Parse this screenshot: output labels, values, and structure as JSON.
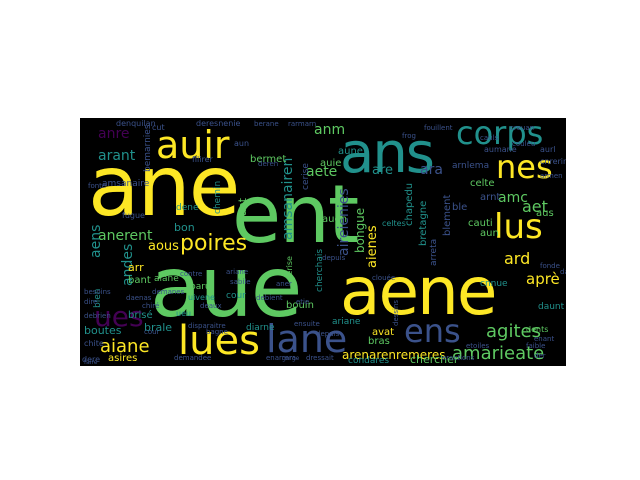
{
  "palette": [
    "#440154",
    "#3b528b",
    "#21918c",
    "#5ec962",
    "#fde725"
  ],
  "words": [
    {
      "text": "ane",
      "color": "#fde725"
    },
    {
      "text": "ent",
      "color": "#5ec962"
    },
    {
      "text": "aue",
      "color": "#5ec962"
    },
    {
      "text": "aene",
      "color": "#fde725"
    },
    {
      "text": "ans",
      "color": "#21918c"
    },
    {
      "text": "corps",
      "color": "#21918c"
    },
    {
      "text": "auir",
      "color": "#fde725"
    },
    {
      "text": "nes",
      "color": "#fde725"
    },
    {
      "text": "lus",
      "color": "#fde725"
    },
    {
      "text": "lues",
      "color": "#fde725"
    },
    {
      "text": "lane",
      "color": "#3b528b"
    },
    {
      "text": "ens",
      "color": "#3b528b"
    },
    {
      "text": "ues",
      "color": "#440154"
    },
    {
      "text": "poires",
      "color": "#fde725"
    },
    {
      "text": "aous",
      "color": "#fde725"
    },
    {
      "text": "aiane",
      "color": "#fde725"
    },
    {
      "text": "agites",
      "color": "#5ec962"
    },
    {
      "text": "amarieate",
      "color": "#5ec962"
    },
    {
      "text": "aireienies",
      "color": "#3b528b"
    },
    {
      "text": "aet",
      "color": "#5ec962"
    },
    {
      "text": "ard",
      "color": "#fde725"
    },
    {
      "text": "aprè",
      "color": "#fde725"
    },
    {
      "text": "anerent",
      "color": "#5ec962"
    },
    {
      "text": "arant",
      "color": "#21918c"
    },
    {
      "text": "anre",
      "color": "#440154"
    },
    {
      "text": "aete",
      "color": "#5ec962"
    },
    {
      "text": "ara",
      "color": "#3b528b"
    },
    {
      "text": "are",
      "color": "#21918c"
    },
    {
      "text": "anm",
      "color": "#5ec962"
    },
    {
      "text": "amc",
      "color": "#5ec962"
    },
    {
      "text": "aens",
      "color": "#21918c"
    },
    {
      "text": "andes",
      "color": "#21918c"
    },
    {
      "text": "amsanairen",
      "color": "#21918c"
    },
    {
      "text": "amsanaire",
      "color": "#3b528b"
    },
    {
      "text": "aiane",
      "color": "#5ec962"
    },
    {
      "text": "aienes",
      "color": "#fde725"
    },
    {
      "text": "arenarenremeres",
      "color": "#fde725"
    },
    {
      "text": "bongue",
      "color": "#5ec962"
    },
    {
      "text": "bon",
      "color": "#21918c"
    },
    {
      "text": "arr",
      "color": "#fde725"
    },
    {
      "text": "bant",
      "color": "#5ec962"
    },
    {
      "text": "brisé",
      "color": "#21918c"
    },
    {
      "text": "brale",
      "color": "#21918c"
    },
    {
      "text": "boutes",
      "color": "#21918c"
    },
    {
      "text": "asires",
      "color": "#fde725"
    },
    {
      "text": "bouin",
      "color": "#5ec962"
    },
    {
      "text": "avat",
      "color": "#fde725"
    },
    {
      "text": "bras",
      "color": "#5ec962"
    },
    {
      "text": "ariane",
      "color": "#21918c"
    },
    {
      "text": "chercher",
      "color": "#5ec962"
    },
    {
      "text": "condares",
      "color": "#21918c"
    },
    {
      "text": "aune",
      "color": "#21918c"
    },
    {
      "text": "auie",
      "color": "#5ec962"
    },
    {
      "text": "auen",
      "color": "#5ec962"
    },
    {
      "text": "ant",
      "color": "#5ec962"
    },
    {
      "text": "bermet",
      "color": "#5ec962"
    },
    {
      "text": "cauti",
      "color": "#5ec962"
    },
    {
      "text": "aun",
      "color": "#5ec962"
    },
    {
      "text": "celte",
      "color": "#5ec962"
    },
    {
      "text": "aus",
      "color": "#5ec962"
    },
    {
      "text": "bretagne",
      "color": "#21918c"
    },
    {
      "text": "chapedu",
      "color": "#21918c"
    },
    {
      "text": "blement",
      "color": "#3b528b"
    },
    {
      "text": "ble",
      "color": "#3b528b"
    },
    {
      "text": "arnt",
      "color": "#3b528b"
    },
    {
      "text": "cerise",
      "color": "#3b528b"
    },
    {
      "text": "cour",
      "color": "#21918c"
    },
    {
      "text": "chemin",
      "color": "#21918c"
    },
    {
      "text": "dene",
      "color": "#21918c"
    },
    {
      "text": "baruf",
      "color": "#5ec962"
    },
    {
      "text": "diarne",
      "color": "#21918c"
    },
    {
      "text": "bien",
      "color": "#21918c"
    },
    {
      "text": "chite",
      "color": "#3b528b"
    },
    {
      "text": "dere",
      "color": "#3b528b"
    },
    {
      "text": "arreta",
      "color": "#3b528b"
    },
    {
      "text": "cnnue",
      "color": "#21918c"
    },
    {
      "text": "daunt",
      "color": "#21918c"
    },
    {
      "text": "dents",
      "color": "#5ec962"
    },
    {
      "text": "cerise",
      "color": "#5ec962"
    },
    {
      "text": "arnlema",
      "color": "#3b528b"
    },
    {
      "text": "aumane",
      "color": "#3b528b"
    },
    {
      "text": "cnrerine",
      "color": "#3b528b"
    },
    {
      "text": "aurl",
      "color": "#3b528b"
    },
    {
      "text": "cherchais",
      "color": "#21918c"
    },
    {
      "text": "uivene",
      "color": "#21918c"
    },
    {
      "text": "ueu",
      "color": "#21918c"
    },
    {
      "text": "daenas",
      "color": "#3b528b"
    },
    {
      "text": "chiré",
      "color": "#3b528b"
    },
    {
      "text": "contre",
      "color": "#3b528b"
    },
    {
      "text": "demanes",
      "color": "#3b528b"
    },
    {
      "text": "besoins",
      "color": "#3b528b"
    },
    {
      "text": "deaux",
      "color": "#3b528b"
    },
    {
      "text": "debrien",
      "color": "#3b528b"
    },
    {
      "text": "debient",
      "color": "#3b528b"
    },
    {
      "text": "aner",
      "color": "#3b528b"
    },
    {
      "text": "dire",
      "color": "#3b528b"
    },
    {
      "text": "cauls",
      "color": "#3b528b"
    },
    {
      "text": "couleu",
      "color": "#3b528b"
    },
    {
      "text": "fugue",
      "color": "#3b528b"
    },
    {
      "text": "bemarnies",
      "color": "#3b528b"
    },
    {
      "text": "cut",
      "color": "#3b528b"
    },
    {
      "text": "denquilan",
      "color": "#3b528b"
    },
    {
      "text": "deresnenie",
      "color": "#3b528b"
    },
    {
      "text": "filirer",
      "color": "#3b528b"
    },
    {
      "text": "berane",
      "color": "#3b528b"
    },
    {
      "text": "aun",
      "color": "#3b528b"
    },
    {
      "text": "deren",
      "color": "#3b528b"
    },
    {
      "text": "rarmarn",
      "color": "#3b528b"
    },
    {
      "text": "celtes",
      "color": "#21918c"
    },
    {
      "text": "fouillent",
      "color": "#3b528b"
    },
    {
      "text": "creuan",
      "color": "#3b528b"
    },
    {
      "text": "frog",
      "color": "#3b528b"
    },
    {
      "text": "armen",
      "color": "#3b528b"
    },
    {
      "text": "fonte",
      "color": "#3b528b"
    },
    {
      "text": "depuis",
      "color": "#3b528b"
    },
    {
      "text": "etie",
      "color": "#3b528b"
    },
    {
      "text": "clouée",
      "color": "#3b528b"
    },
    {
      "text": "ensuite",
      "color": "#3b528b"
    },
    {
      "text": "dessins",
      "color": "#3b528b"
    },
    {
      "text": "etoiles",
      "color": "#3b528b"
    },
    {
      "text": "fonde",
      "color": "#3b528b"
    },
    {
      "text": "faible",
      "color": "#3b528b"
    },
    {
      "text": "enant",
      "color": "#3b528b"
    },
    {
      "text": "ariane",
      "color": "#3b528b"
    },
    {
      "text": "depuis",
      "color": "#3b528b"
    },
    {
      "text": "disparaitre",
      "color": "#3b528b"
    },
    {
      "text": "dressait",
      "color": "#3b528b"
    },
    {
      "text": "enarrera",
      "color": "#3b528b"
    },
    {
      "text": "eractions",
      "color": "#3b528b"
    },
    {
      "text": "demandee",
      "color": "#3b528b"
    },
    {
      "text": "bagne",
      "color": "#3b528b"
    },
    {
      "text": "sabile",
      "color": "#3b528b"
    },
    {
      "text": "garge",
      "color": "#3b528b"
    },
    {
      "text": "der",
      "color": "#3b528b"
    },
    {
      "text": "dater",
      "color": "#3b528b"
    },
    {
      "text": "cour",
      "color": "#3b528b"
    },
    {
      "text": "faire",
      "color": "#3b528b"
    }
  ]
}
